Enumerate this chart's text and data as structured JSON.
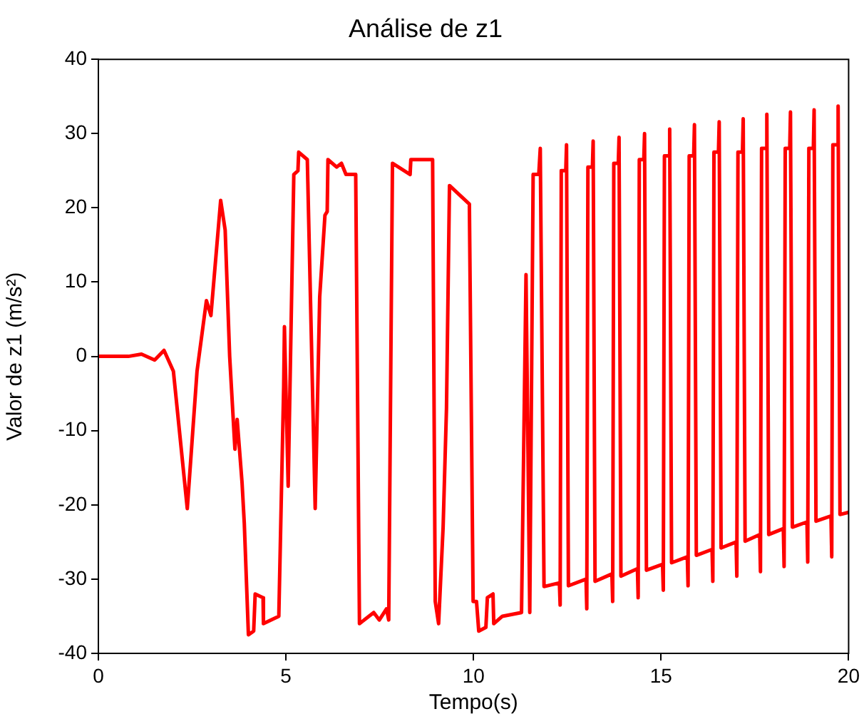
{
  "chart_data": {
    "type": "line",
    "title": "Análise de z1",
    "xlabel": "Tempo(s)",
    "ylabel": "Valor de z1 (m/s²)",
    "xlim": [
      0,
      20
    ],
    "xticks": [
      0,
      5,
      10,
      15,
      20
    ],
    "ylim": [
      -40,
      40
    ],
    "yticks": [
      -40,
      -30,
      -20,
      -10,
      0,
      10,
      20,
      30,
      40
    ],
    "grid": false,
    "legend": false,
    "marker": "none",
    "line_style": "solid",
    "series": [
      {
        "color": "#ff0000",
        "x": [
          0,
          0.8,
          1.15,
          1.5,
          1.75,
          2.0,
          2.37,
          2.63,
          2.88,
          3.0,
          3.26,
          3.38,
          3.5,
          3.64,
          3.7,
          3.83,
          3.89,
          4.0,
          4.14,
          4.18,
          4.39,
          4.4,
          4.81,
          4.94,
          4.96,
          5.06,
          5.21,
          5.32,
          5.34,
          5.57,
          5.78,
          5.9,
          6.04,
          6.1,
          6.12,
          6.35,
          6.48,
          6.6,
          6.86,
          6.96,
          7.34,
          7.49,
          7.68,
          7.74,
          7.84,
          8.31,
          8.33,
          8.91,
          8.98,
          9.07,
          9.19,
          9.28,
          9.36,
          9.89,
          9.99,
          10.08,
          10.14,
          10.33,
          10.37,
          10.52,
          10.54,
          10.77,
          11.28,
          11.4,
          11.5,
          11.59,
          11.74,
          11.78,
          11.88,
          12.29,
          12.31,
          12.34,
          12.46,
          12.48,
          12.53,
          13.0,
          13.02,
          13.05,
          13.17,
          13.19,
          13.24,
          13.69,
          13.71,
          13.74,
          13.86,
          13.88,
          13.93,
          14.37,
          14.39,
          14.42,
          14.54,
          14.56,
          14.61,
          15.04,
          15.06,
          15.09,
          15.21,
          15.23,
          15.28,
          15.7,
          15.72,
          15.75,
          15.87,
          15.89,
          15.94,
          16.36,
          16.38,
          16.41,
          16.53,
          16.55,
          16.6,
          17.0,
          17.02,
          17.05,
          17.17,
          17.19,
          17.24,
          17.63,
          17.65,
          17.68,
          17.8,
          17.82,
          17.87,
          18.26,
          18.28,
          18.31,
          18.43,
          18.45,
          18.5,
          18.89,
          18.91,
          18.94,
          19.06,
          19.08,
          19.13,
          19.53,
          19.55,
          19.58,
          19.7,
          19.72,
          19.77,
          20
        ],
        "values": [
          0,
          0,
          0.3,
          -0.5,
          0.8,
          -2,
          -20.5,
          -2,
          7.5,
          5.5,
          21,
          17,
          0,
          -12.5,
          -8.5,
          -17,
          -22.5,
          -37.5,
          -37,
          -32,
          -32.5,
          -36,
          -35,
          -4,
          4,
          -17.5,
          24.5,
          25,
          27.5,
          26.5,
          -20.5,
          8,
          19,
          19.5,
          26.5,
          25.5,
          26,
          24.5,
          24.5,
          -36,
          -34.5,
          -35.5,
          -34,
          -35.5,
          26,
          24.5,
          26.5,
          26.5,
          -33,
          -36,
          -23,
          -7,
          23,
          20.5,
          -33,
          -33,
          -37,
          -36.5,
          -32.5,
          -32,
          -36,
          -35,
          -34.5,
          11,
          -34.5,
          24.5,
          24.5,
          28,
          -31,
          -30.5,
          -33.5,
          25,
          25,
          28.5,
          -30.9,
          -30,
          -34,
          25.5,
          25.5,
          29,
          -30.3,
          -29.3,
          -33,
          26,
          26,
          29.5,
          -29.6,
          -28.6,
          -32.5,
          26.5,
          26.5,
          30,
          -28.8,
          -28,
          -31.5,
          27,
          27,
          30.6,
          -27.8,
          -27,
          -30.9,
          27,
          27,
          31.2,
          -26.8,
          -26,
          -30.3,
          27.5,
          27.5,
          31.6,
          -25.8,
          -25,
          -29.6,
          27.5,
          27.5,
          32,
          -24.9,
          -24,
          -29,
          28,
          28,
          32.6,
          -24,
          -23.2,
          -28.3,
          28,
          28,
          32.9,
          -23,
          -22.3,
          -27.7,
          28,
          28,
          33.2,
          -22.2,
          -21.5,
          -27,
          28.5,
          28.5,
          33.7,
          -21.3,
          -21
        ]
      }
    ]
  }
}
